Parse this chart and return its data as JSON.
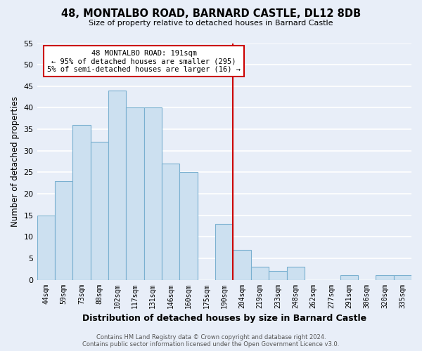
{
  "title": "48, MONTALBO ROAD, BARNARD CASTLE, DL12 8DB",
  "subtitle": "Size of property relative to detached houses in Barnard Castle",
  "xlabel": "Distribution of detached houses by size in Barnard Castle",
  "ylabel": "Number of detached properties",
  "bar_color": "#cce0f0",
  "bar_edge_color": "#7ab0d0",
  "background_color": "#e8eef8",
  "grid_color": "white",
  "bin_labels": [
    "44sqm",
    "59sqm",
    "73sqm",
    "88sqm",
    "102sqm",
    "117sqm",
    "131sqm",
    "146sqm",
    "160sqm",
    "175sqm",
    "190sqm",
    "204sqm",
    "219sqm",
    "233sqm",
    "248sqm",
    "262sqm",
    "277sqm",
    "291sqm",
    "306sqm",
    "320sqm",
    "335sqm"
  ],
  "bar_heights": [
    15,
    23,
    36,
    32,
    44,
    40,
    40,
    27,
    25,
    0,
    13,
    7,
    3,
    2,
    3,
    0,
    0,
    1,
    0,
    1,
    1
  ],
  "ylim": [
    0,
    55
  ],
  "yticks": [
    0,
    5,
    10,
    15,
    20,
    25,
    30,
    35,
    40,
    45,
    50,
    55
  ],
  "vline_color": "#cc0000",
  "annotation_title": "48 MONTALBO ROAD: 191sqm",
  "annotation_line1": "← 95% of detached houses are smaller (295)",
  "annotation_line2": "5% of semi-detached houses are larger (16) →",
  "annotation_box_color": "white",
  "annotation_box_edge": "#cc0000",
  "footer1": "Contains HM Land Registry data © Crown copyright and database right 2024.",
  "footer2": "Contains public sector information licensed under the Open Government Licence v3.0."
}
